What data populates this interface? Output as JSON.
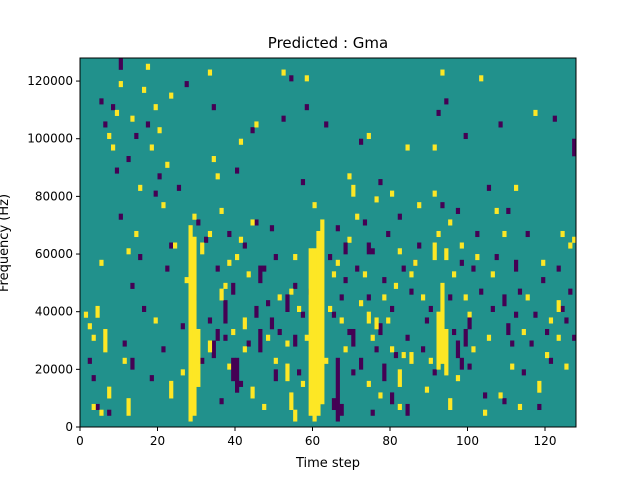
{
  "chart_data": {
    "type": "heatmap",
    "title": "Predicted : Gma",
    "xlabel": "Time step",
    "ylabel": "Frequency (Hz)",
    "xlim": [
      0,
      128
    ],
    "ylim": [
      0,
      128000
    ],
    "x_ticks": [
      0,
      20,
      40,
      60,
      80,
      100,
      120
    ],
    "y_ticks": [
      0,
      20000,
      40000,
      60000,
      80000,
      100000,
      120000
    ],
    "x_tick_labels": [
      "0",
      "20",
      "40",
      "60",
      "80",
      "100",
      "120"
    ],
    "y_tick_labels": [
      "0",
      "20000",
      "40000",
      "60000",
      "80000",
      "100000",
      "120000"
    ],
    "n_time_steps": 128,
    "n_freq_bins": 64,
    "bin_height_hz": 2000,
    "colormap": "viridis",
    "colors": {
      "background": "#21918c",
      "high": "#fde725",
      "low": "#440154"
    },
    "grid": false,
    "high_runs": [
      {
        "t": 28,
        "f_start": 2000,
        "f_end": 70000
      },
      {
        "t": 29,
        "f_start": 4000,
        "f_end": 66000
      },
      {
        "t": 30,
        "f_start": 14000,
        "f_end": 34000
      },
      {
        "t": 59,
        "f_start": 4000,
        "f_end": 62000
      },
      {
        "t": 60,
        "f_start": 2000,
        "f_end": 62000
      },
      {
        "t": 61,
        "f_start": 4000,
        "f_end": 68000
      },
      {
        "t": 62,
        "f_start": 8000,
        "f_end": 72000
      },
      {
        "t": 92,
        "f_start": 20000,
        "f_end": 40000
      },
      {
        "t": 93,
        "f_start": 22000,
        "f_end": 50000
      },
      {
        "t": 94,
        "f_start": 18000,
        "f_end": 34000
      },
      {
        "t": 4,
        "f_start": 38000,
        "f_end": 42000
      },
      {
        "t": 6,
        "f_start": 26000,
        "f_end": 34000
      },
      {
        "t": 7,
        "f_start": 10000,
        "f_end": 14000
      },
      {
        "t": 12,
        "f_start": 4000,
        "f_end": 10000
      },
      {
        "t": 23,
        "f_start": 10000,
        "f_end": 16000
      },
      {
        "t": 31,
        "f_start": 60000,
        "f_end": 64000
      },
      {
        "t": 33,
        "f_start": 26000,
        "f_end": 30000
      },
      {
        "t": 36,
        "f_start": 44000,
        "f_end": 48000
      },
      {
        "t": 42,
        "f_start": 34000,
        "f_end": 38000
      },
      {
        "t": 44,
        "f_start": 10000,
        "f_end": 14000
      },
      {
        "t": 53,
        "f_start": 16000,
        "f_end": 22000
      },
      {
        "t": 54,
        "f_start": 6000,
        "f_end": 12000
      },
      {
        "t": 55,
        "f_start": 2000,
        "f_end": 6000
      },
      {
        "t": 70,
        "f_start": 80000,
        "f_end": 84000
      },
      {
        "t": 74,
        "f_start": 36000,
        "f_end": 40000
      },
      {
        "t": 76,
        "f_start": 34000,
        "f_end": 38000
      },
      {
        "t": 82,
        "f_start": 14000,
        "f_end": 20000
      },
      {
        "t": 85,
        "f_start": 22000,
        "f_end": 26000
      },
      {
        "t": 91,
        "f_start": 58000,
        "f_end": 64000
      },
      {
        "t": 94,
        "f_start": 58000,
        "f_end": 62000
      },
      {
        "t": 95,
        "f_start": 6000,
        "f_end": 10000
      },
      {
        "t": 118,
        "f_start": 12000,
        "f_end": 16000
      },
      {
        "t": 123,
        "f_start": 40000,
        "f_end": 44000
      }
    ],
    "low_runs": [
      {
        "t": 39,
        "f_start": 16000,
        "f_end": 24000
      },
      {
        "t": 40,
        "f_start": 12000,
        "f_end": 24000
      },
      {
        "t": 37,
        "f_start": 36000,
        "f_end": 44000
      },
      {
        "t": 34,
        "f_start": 24000,
        "f_end": 30000
      },
      {
        "t": 35,
        "f_start": 30000,
        "f_end": 34000
      },
      {
        "t": 39,
        "f_start": 46000,
        "f_end": 50000
      },
      {
        "t": 46,
        "f_start": 26000,
        "f_end": 34000
      },
      {
        "t": 46,
        "f_start": 50000,
        "f_end": 56000
      },
      {
        "t": 45,
        "f_start": 38000,
        "f_end": 42000
      },
      {
        "t": 50,
        "f_start": 16000,
        "f_end": 20000
      },
      {
        "t": 49,
        "f_start": 34000,
        "f_end": 38000
      },
      {
        "t": 53,
        "f_start": 40000,
        "f_end": 46000
      },
      {
        "t": 55,
        "f_start": 28000,
        "f_end": 32000
      },
      {
        "t": 65,
        "f_start": 6000,
        "f_end": 10000
      },
      {
        "t": 66,
        "f_start": 2000,
        "f_end": 24000
      },
      {
        "t": 67,
        "f_start": 4000,
        "f_end": 8000
      },
      {
        "t": 68,
        "f_start": 60000,
        "f_end": 64000
      },
      {
        "t": 70,
        "f_start": 28000,
        "f_end": 34000
      },
      {
        "t": 72,
        "f_start": 20000,
        "f_end": 24000
      },
      {
        "t": 74,
        "f_start": 60000,
        "f_end": 64000
      },
      {
        "t": 77,
        "f_start": 32000,
        "f_end": 36000
      },
      {
        "t": 78,
        "f_start": 16000,
        "f_end": 22000
      },
      {
        "t": 80,
        "f_start": 8000,
        "f_end": 12000
      },
      {
        "t": 84,
        "f_start": 4000,
        "f_end": 8000
      },
      {
        "t": 97,
        "f_start": 24000,
        "f_end": 30000
      },
      {
        "t": 98,
        "f_start": 20000,
        "f_end": 24000
      },
      {
        "t": 99,
        "f_start": 28000,
        "f_end": 34000
      },
      {
        "t": 100,
        "f_start": 34000,
        "f_end": 38000
      },
      {
        "t": 109,
        "f_start": 42000,
        "f_end": 46000
      },
      {
        "t": 110,
        "f_start": 32000,
        "f_end": 36000
      },
      {
        "t": 112,
        "f_start": 54000,
        "f_end": 58000
      },
      {
        "t": 127,
        "f_start": 94000,
        "f_end": 100000
      },
      {
        "t": 10,
        "f_start": 124000,
        "f_end": 128000
      },
      {
        "t": 13,
        "f_start": 20000,
        "f_end": 24000
      }
    ],
    "high_cells": [
      [
        1,
        38
      ],
      [
        2,
        34
      ],
      [
        3,
        30
      ],
      [
        3,
        6
      ],
      [
        5,
        4
      ],
      [
        5,
        56
      ],
      [
        7,
        100
      ],
      [
        8,
        96
      ],
      [
        9,
        108
      ],
      [
        10,
        118
      ],
      [
        11,
        22
      ],
      [
        12,
        60
      ],
      [
        13,
        106
      ],
      [
        14,
        66
      ],
      [
        15,
        82
      ],
      [
        16,
        116
      ],
      [
        17,
        124
      ],
      [
        18,
        96
      ],
      [
        19,
        36
      ],
      [
        19,
        110
      ],
      [
        20,
        102
      ],
      [
        21,
        76
      ],
      [
        22,
        90
      ],
      [
        23,
        114
      ],
      [
        24,
        62
      ],
      [
        26,
        18
      ],
      [
        27,
        50
      ],
      [
        29,
        72
      ],
      [
        33,
        122
      ],
      [
        33,
        66
      ],
      [
        34,
        92
      ],
      [
        35,
        86
      ],
      [
        36,
        74
      ],
      [
        37,
        48
      ],
      [
        38,
        56
      ],
      [
        38,
        20
      ],
      [
        39,
        32
      ],
      [
        40,
        58
      ],
      [
        41,
        98
      ],
      [
        41,
        64
      ],
      [
        42,
        26
      ],
      [
        43,
        52
      ],
      [
        44,
        70
      ],
      [
        45,
        104
      ],
      [
        47,
        6
      ],
      [
        48,
        30
      ],
      [
        50,
        22
      ],
      [
        51,
        44
      ],
      [
        52,
        122
      ],
      [
        53,
        28
      ],
      [
        54,
        46
      ],
      [
        55,
        58
      ],
      [
        56,
        40
      ],
      [
        57,
        14
      ],
      [
        58,
        120
      ],
      [
        58,
        30
      ],
      [
        60,
        76
      ],
      [
        61,
        34
      ],
      [
        63,
        22
      ],
      [
        64,
        40
      ],
      [
        65,
        52
      ],
      [
        66,
        56
      ],
      [
        67,
        36
      ],
      [
        68,
        26
      ],
      [
        69,
        86
      ],
      [
        69,
        64
      ],
      [
        71,
        72
      ],
      [
        72,
        42
      ],
      [
        73,
        52
      ],
      [
        74,
        14
      ],
      [
        74,
        100
      ],
      [
        75,
        30
      ],
      [
        76,
        78
      ],
      [
        77,
        10
      ],
      [
        78,
        44
      ],
      [
        79,
        36
      ],
      [
        80,
        80
      ],
      [
        80,
        26
      ],
      [
        81,
        48
      ],
      [
        82,
        6
      ],
      [
        82,
        60
      ],
      [
        83,
        24
      ],
      [
        84,
        96
      ],
      [
        85,
        52
      ],
      [
        86,
        56
      ],
      [
        87,
        76
      ],
      [
        88,
        44
      ],
      [
        89,
        12
      ],
      [
        90,
        22
      ],
      [
        91,
        80
      ],
      [
        91,
        96
      ],
      [
        92,
        66
      ],
      [
        93,
        122
      ],
      [
        95,
        70
      ],
      [
        96,
        52
      ],
      [
        97,
        16
      ],
      [
        98,
        62
      ],
      [
        99,
        44
      ],
      [
        100,
        38
      ],
      [
        101,
        26
      ],
      [
        102,
        58
      ],
      [
        103,
        120
      ],
      [
        104,
        4
      ],
      [
        105,
        30
      ],
      [
        106,
        52
      ],
      [
        107,
        74
      ],
      [
        108,
        10
      ],
      [
        109,
        66
      ],
      [
        111,
        20
      ],
      [
        112,
        82
      ],
      [
        113,
        6
      ],
      [
        114,
        32
      ],
      [
        115,
        44
      ],
      [
        117,
        108
      ],
      [
        119,
        56
      ],
      [
        120,
        24
      ],
      [
        121,
        36
      ],
      [
        123,
        30
      ],
      [
        124,
        66
      ],
      [
        125,
        20
      ],
      [
        126,
        62
      ],
      [
        127,
        64
      ]
    ],
    "low_cells": [
      [
        2,
        22
      ],
      [
        3,
        16
      ],
      [
        4,
        6
      ],
      [
        5,
        112
      ],
      [
        6,
        104
      ],
      [
        7,
        4
      ],
      [
        8,
        110
      ],
      [
        9,
        88
      ],
      [
        10,
        72
      ],
      [
        11,
        28
      ],
      [
        12,
        92
      ],
      [
        13,
        48
      ],
      [
        14,
        100
      ],
      [
        15,
        58
      ],
      [
        16,
        40
      ],
      [
        17,
        104
      ],
      [
        18,
        16
      ],
      [
        19,
        80
      ],
      [
        20,
        86
      ],
      [
        21,
        26
      ],
      [
        22,
        54
      ],
      [
        23,
        62
      ],
      [
        25,
        82
      ],
      [
        26,
        34
      ],
      [
        27,
        118
      ],
      [
        28,
        40
      ],
      [
        29,
        44
      ],
      [
        30,
        70
      ],
      [
        31,
        22
      ],
      [
        32,
        64
      ],
      [
        33,
        36
      ],
      [
        34,
        110
      ],
      [
        35,
        54
      ],
      [
        36,
        8
      ],
      [
        37,
        30
      ],
      [
        38,
        66
      ],
      [
        40,
        88
      ],
      [
        41,
        14
      ],
      [
        42,
        62
      ],
      [
        43,
        28
      ],
      [
        44,
        102
      ],
      [
        45,
        70
      ],
      [
        47,
        54
      ],
      [
        48,
        42
      ],
      [
        49,
        68
      ],
      [
        50,
        58
      ],
      [
        51,
        32
      ],
      [
        52,
        106
      ],
      [
        54,
        120
      ],
      [
        55,
        48
      ],
      [
        56,
        18
      ],
      [
        57,
        38
      ],
      [
        57,
        84
      ],
      [
        58,
        110
      ],
      [
        59,
        46
      ],
      [
        63,
        104
      ],
      [
        64,
        58
      ],
      [
        65,
        38
      ],
      [
        66,
        68
      ],
      [
        67,
        44
      ],
      [
        68,
        50
      ],
      [
        69,
        32
      ],
      [
        70,
        18
      ],
      [
        71,
        54
      ],
      [
        72,
        98
      ],
      [
        73,
        70
      ],
      [
        74,
        44
      ],
      [
        75,
        60
      ],
      [
        75,
        4
      ],
      [
        76,
        26
      ],
      [
        77,
        84
      ],
      [
        78,
        50
      ],
      [
        79,
        66
      ],
      [
        80,
        40
      ],
      [
        81,
        24
      ],
      [
        82,
        72
      ],
      [
        83,
        54
      ],
      [
        84,
        30
      ],
      [
        85,
        46
      ],
      [
        86,
        56
      ],
      [
        87,
        62
      ],
      [
        88,
        26
      ],
      [
        89,
        36
      ],
      [
        90,
        40
      ],
      [
        91,
        18
      ],
      [
        92,
        108
      ],
      [
        93,
        76
      ],
      [
        94,
        112
      ],
      [
        95,
        44
      ],
      [
        96,
        32
      ],
      [
        97,
        74
      ],
      [
        98,
        56
      ],
      [
        99,
        100
      ],
      [
        100,
        20
      ],
      [
        101,
        54
      ],
      [
        102,
        66
      ],
      [
        103,
        46
      ],
      [
        104,
        10
      ],
      [
        105,
        82
      ],
      [
        106,
        40
      ],
      [
        107,
        58
      ],
      [
        108,
        104
      ],
      [
        109,
        8
      ],
      [
        110,
        74
      ],
      [
        111,
        28
      ],
      [
        112,
        38
      ],
      [
        113,
        46
      ],
      [
        114,
        18
      ],
      [
        115,
        66
      ],
      [
        116,
        28
      ],
      [
        117,
        38
      ],
      [
        118,
        6
      ],
      [
        119,
        50
      ],
      [
        120,
        32
      ],
      [
        121,
        22
      ],
      [
        122,
        106
      ],
      [
        123,
        54
      ],
      [
        124,
        40
      ],
      [
        125,
        36
      ],
      [
        126,
        46
      ],
      [
        127,
        30
      ]
    ]
  }
}
